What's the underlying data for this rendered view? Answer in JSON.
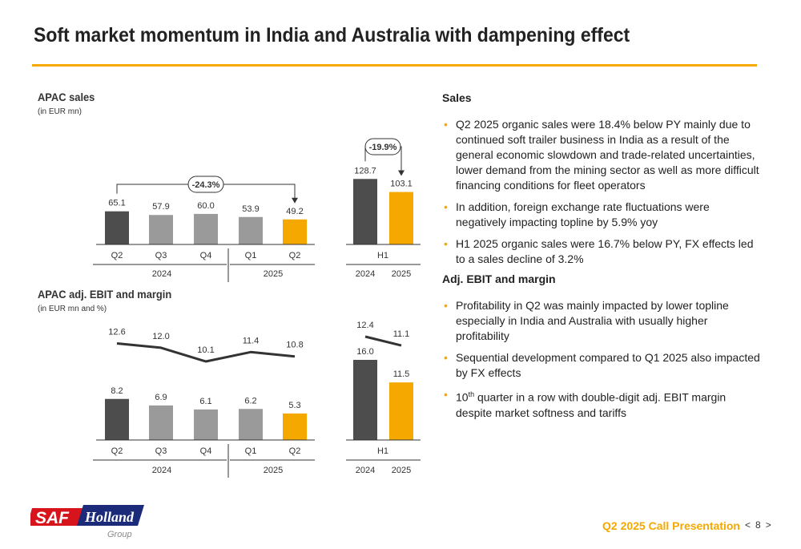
{
  "header": {
    "title": "Soft market momentum in India and Australia with dampening effect"
  },
  "colors": {
    "accent": "#f5a800",
    "dark_bar": "#4d4d4d",
    "grey_bar": "#9a9a9a",
    "line": "#333333"
  },
  "sales_chart": {
    "heading": "APAC sales",
    "subheading": "(in EUR mn)",
    "quarterly_change": "-24.3%",
    "half_year_change": "-19.9%"
  },
  "ebit_chart": {
    "heading": "APAC adj. EBIT and margin",
    "subheading": "(in EUR mn and %)"
  },
  "chart_data": [
    {
      "type": "bar",
      "id": "apac-sales-quarterly",
      "title": "APAC sales",
      "unit": "(in EUR mn)",
      "categories": [
        "Q2",
        "Q3",
        "Q4",
        "Q1",
        "Q2"
      ],
      "groups": [
        {
          "label": "2024",
          "span": 3
        },
        {
          "label": "2025",
          "span": 2
        }
      ],
      "values": [
        65.1,
        57.9,
        60.0,
        53.9,
        49.2
      ],
      "value_labels": [
        "65.1",
        "57.9",
        "60.0",
        "53.9",
        "49.2"
      ],
      "styles": [
        "dark",
        "grey",
        "grey",
        "grey",
        "accent"
      ],
      "annotation": "-24.3%"
    },
    {
      "type": "bar",
      "id": "apac-sales-h1",
      "categories": [
        "2024",
        "2025"
      ],
      "group_label": "H1",
      "values": [
        128.7,
        103.1
      ],
      "value_labels": [
        "128.7",
        "103.1"
      ],
      "styles": [
        "dark",
        "accent"
      ],
      "annotation": "-19.9%"
    },
    {
      "type": "bar",
      "id": "apac-ebit-quarterly",
      "title": "APAC adj. EBIT and margin",
      "unit": "(in EUR mn and %)",
      "categories": [
        "Q2",
        "Q3",
        "Q4",
        "Q1",
        "Q2"
      ],
      "groups": [
        {
          "label": "2024",
          "span": 3
        },
        {
          "label": "2025",
          "span": 2
        }
      ],
      "values": [
        8.2,
        6.9,
        6.1,
        6.2,
        5.3
      ],
      "value_labels": [
        "8.2",
        "6.9",
        "6.1",
        "6.2",
        "5.3"
      ],
      "styles": [
        "dark",
        "grey",
        "grey",
        "grey",
        "accent"
      ],
      "margin_line": [
        12.6,
        12.0,
        10.1,
        11.4,
        10.8
      ],
      "margin_labels": [
        "12.6",
        "12.0",
        "10.1",
        "11.4",
        "10.8"
      ]
    },
    {
      "type": "bar",
      "id": "apac-ebit-h1",
      "categories": [
        "2024",
        "2025"
      ],
      "group_label": "H1",
      "values": [
        16.0,
        11.5
      ],
      "value_labels": [
        "16.0",
        "11.5"
      ],
      "styles": [
        "dark",
        "accent"
      ],
      "margin_line": [
        12.4,
        11.1
      ],
      "margin_labels": [
        "12.4",
        "11.1"
      ]
    }
  ],
  "commentary": {
    "sales_heading": "Sales",
    "sales_bullets": [
      "Q2 2025 organic sales were 18.4% below PY mainly due to continued soft trailer business in India as a result of the general economic slowdown and trade-related uncertainties, lower demand from the mining sector as well as more difficult financing conditions for fleet operators",
      "In addition, foreign exchange rate fluctuations were negatively impacting topline by 5.9% yoy",
      "H1 2025 organic sales were 16.7% below PY, FX effects led to a sales decline of 3.2%"
    ],
    "ebit_heading": "Adj. EBIT and margin",
    "ebit_bullets": [
      "Profitability in Q2 was mainly impacted by lower topline especially in India and Australia with usually higher profitability",
      "Sequential development compared to Q1 2025 also impacted by FX effects"
    ],
    "ebit_last_bullet": {
      "num": "10",
      "sup": "th",
      "rest": " quarter in a row with double-digit adj. EBIT margin despite market softness and tariffs"
    }
  },
  "logo": {
    "brand_left": "SAF",
    "brand_right": "Holland",
    "tagline": "Group"
  },
  "footer": {
    "presentation": "Q2 2025 Call Presentation",
    "prev": "<",
    "page": "8",
    "next": ">"
  }
}
